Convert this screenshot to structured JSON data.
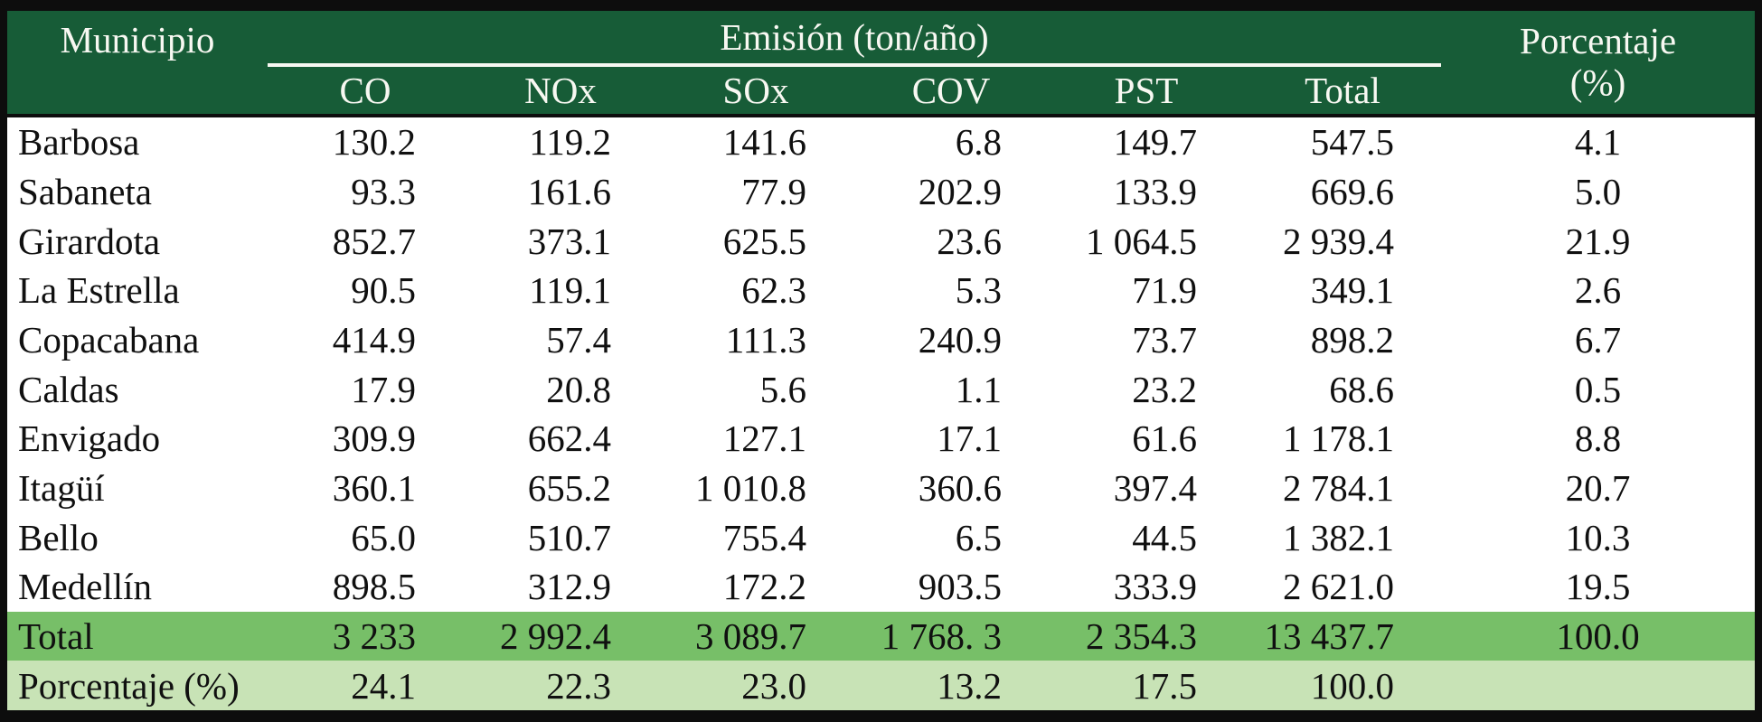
{
  "table": {
    "header": {
      "municipio": "Municipio",
      "emission_group": "Emisión (ton/año)",
      "porcentaje_line1": "Porcentaje",
      "porcentaje_line2": "(%)",
      "columns": [
        "CO",
        "NOx",
        "SOx",
        "COV",
        "PST",
        "Total"
      ]
    },
    "rows": [
      {
        "name": "Barbosa",
        "values": [
          "130.2",
          "119.2",
          "141.6",
          "6.8",
          "149.7",
          "547.5"
        ],
        "pct": "4.1"
      },
      {
        "name": "Sabaneta",
        "values": [
          "93.3",
          "161.6",
          "77.9",
          "202.9",
          "133.9",
          "669.6"
        ],
        "pct": "5.0"
      },
      {
        "name": "Girardota",
        "values": [
          "852.7",
          "373.1",
          "625.5",
          "23.6",
          "1 064.5",
          "2 939.4"
        ],
        "pct": "21.9"
      },
      {
        "name": "La Estrella",
        "values": [
          "90.5",
          "119.1",
          "62.3",
          "5.3",
          "71.9",
          "349.1"
        ],
        "pct": "2.6"
      },
      {
        "name": "Copacabana",
        "values": [
          "414.9",
          "57.4",
          "111.3",
          "240.9",
          "73.7",
          "898.2"
        ],
        "pct": "6.7"
      },
      {
        "name": "Caldas",
        "values": [
          "17.9",
          "20.8",
          "5.6",
          "1.1",
          "23.2",
          "68.6"
        ],
        "pct": "0.5"
      },
      {
        "name": "Envigado",
        "values": [
          "309.9",
          "662.4",
          "127.1",
          "17.1",
          "61.6",
          "1 178.1"
        ],
        "pct": "8.8"
      },
      {
        "name": "Itagüí",
        "values": [
          "360.1",
          "655.2",
          "1 010.8",
          "360.6",
          "397.4",
          "2 784.1"
        ],
        "pct": "20.7"
      },
      {
        "name": "Bello",
        "values": [
          "65.0",
          "510.7",
          "755.4",
          "6.5",
          "44.5",
          "1 382.1"
        ],
        "pct": "10.3"
      },
      {
        "name": "Medellín",
        "values": [
          "898.5",
          "312.9",
          "172.2",
          "903.5",
          "333.9",
          "2 621.0"
        ],
        "pct": "19.5"
      }
    ],
    "footer_rows": [
      {
        "name": "Total",
        "values": [
          "3 233",
          "2 992.4",
          "3 089.7",
          "1 768. 3",
          "2 354.3",
          "13 437.7"
        ],
        "pct": "100.0"
      },
      {
        "name": "Porcentaje (%)",
        "values": [
          "24.1",
          "22.3",
          "23.0",
          "13.2",
          "17.5",
          "100.0"
        ],
        "pct": ""
      }
    ]
  },
  "colors": {
    "header_bg": "#175c37",
    "header_text": "#f8f8f2",
    "total_row_bg": "#77bf68",
    "porcentaje_row_bg": "#c8e3b6",
    "border": "#0d0d0d",
    "body_text": "#101010"
  }
}
